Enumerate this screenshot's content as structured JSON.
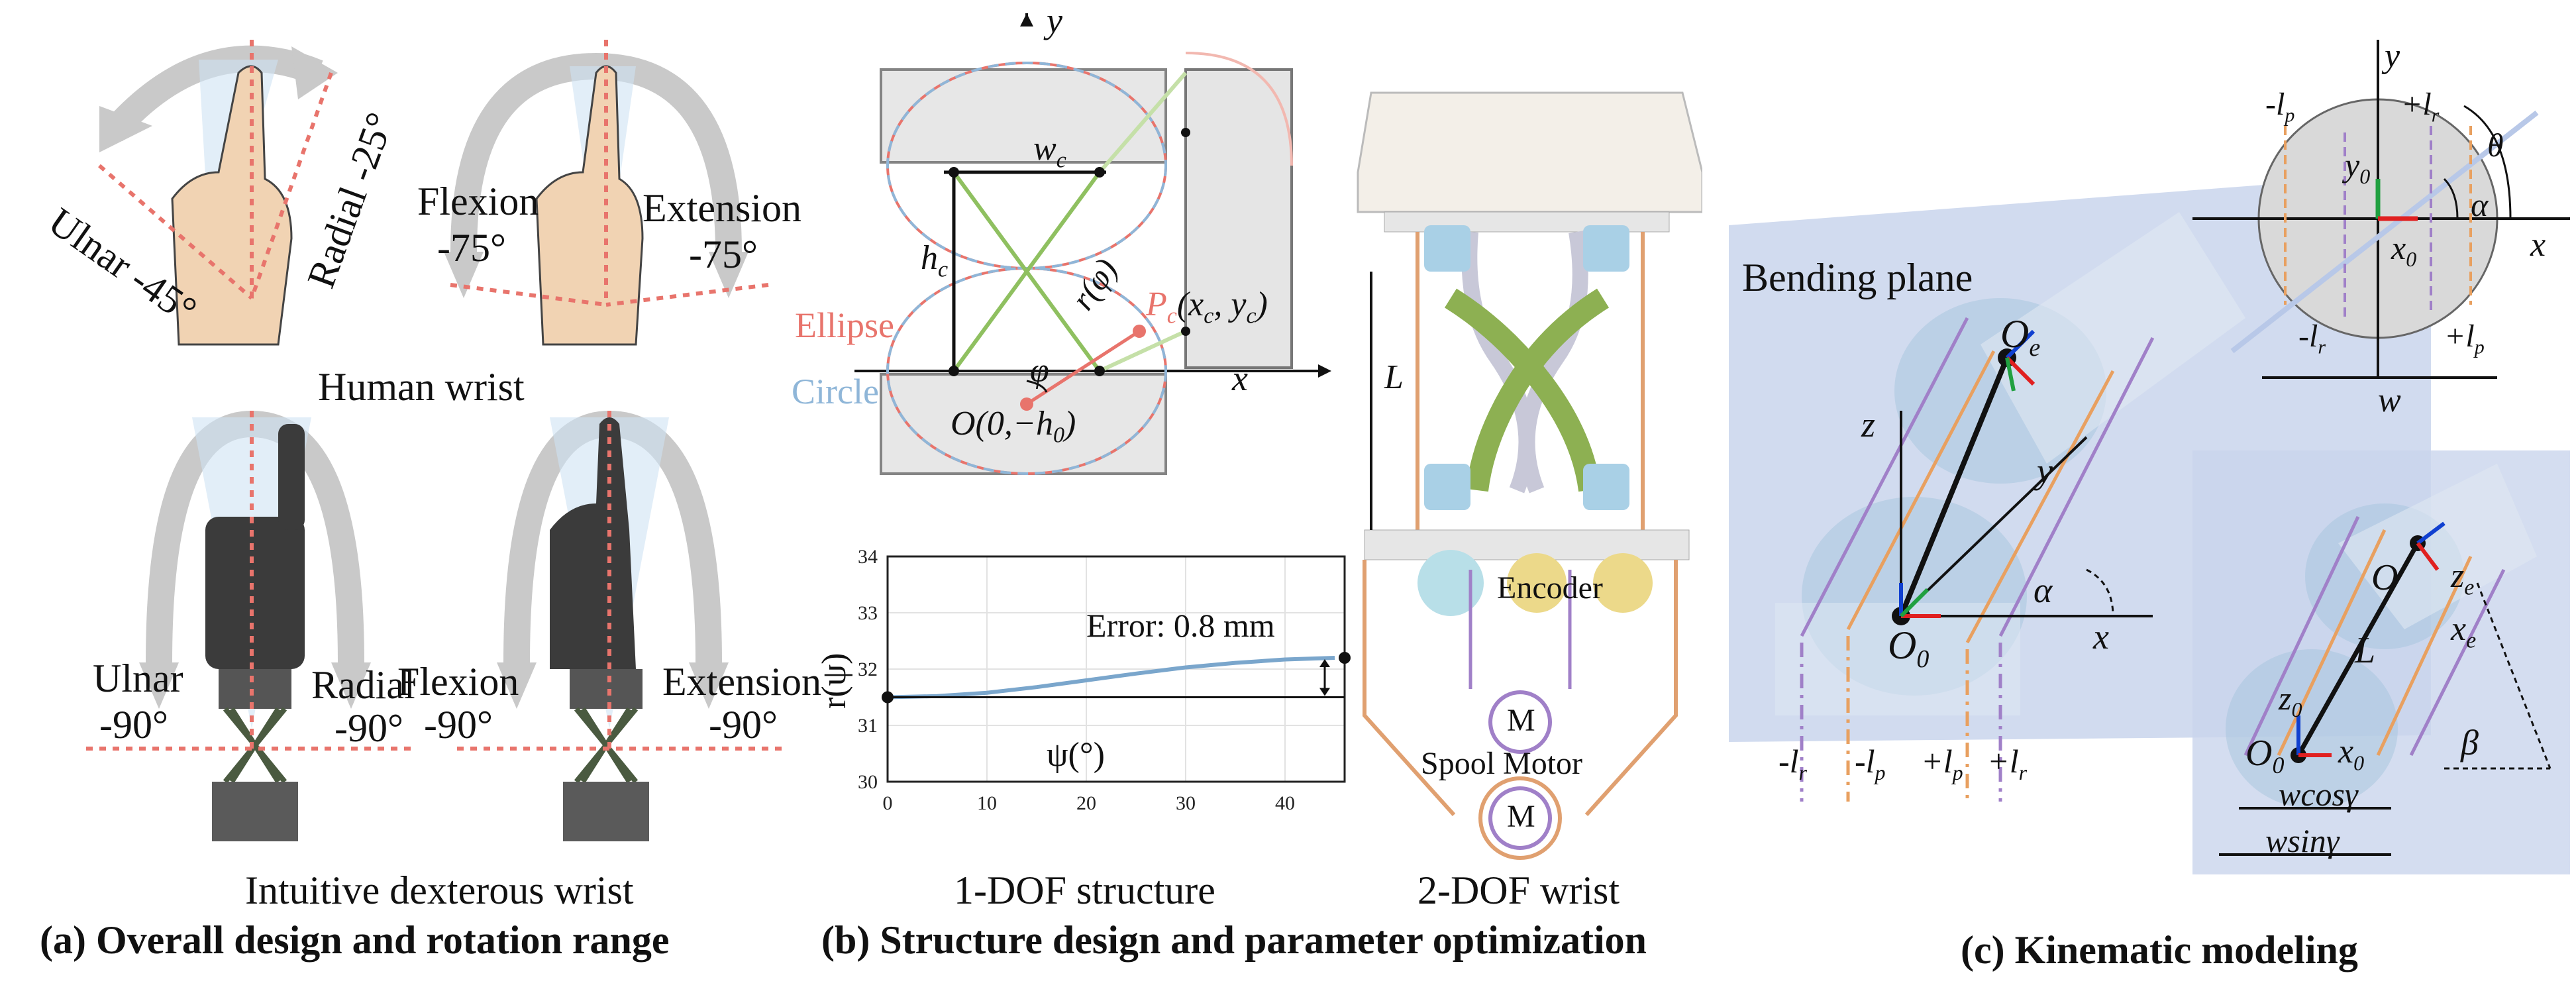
{
  "panel_a": {
    "title": "(a) Overall design and rotation range",
    "human_wrist_label": "Human wrist",
    "robot_wrist_label": "Intuitive dexterous wrist",
    "human_left": {
      "ulnar": "Ulnar -45°",
      "radial": "Radial -25°"
    },
    "human_right": {
      "flexion": "Flexion",
      "flexion_val": "-75°",
      "extension": "Extension",
      "extension_val": "-75°"
    },
    "robot_left": {
      "ulnar": "Ulnar",
      "ulnar_val": "-90°",
      "radial": "Radial",
      "radial_val": "-90°"
    },
    "robot_right": {
      "flexion": "Flexion",
      "flexion_val": "-90°",
      "extension": "Extension",
      "extension_val": "-90°"
    }
  },
  "panel_b": {
    "title": "(b) Structure design and parameter optimization",
    "one_dof_label": "1-DOF structure",
    "two_dof_label": "2-DOF wrist",
    "diagram": {
      "y_axis": "y",
      "x_axis": "x",
      "wc": "w",
      "wc_sub": "c",
      "hc": "h",
      "hc_sub": "c",
      "ellipse": "Ellipse",
      "circle": "Circle",
      "phi": "φ",
      "r_phi": "r(φ)",
      "pc": "P",
      "pc_sub": "c",
      "pc_coords": "(x",
      "pc_coords2": ", y",
      "pc_coords3": ")",
      "origin": "O(0,−h",
      "origin_end": ")"
    },
    "wrist": {
      "L": "L",
      "encoder": "Encoder",
      "spool_motor": "Spool Motor",
      "M1": "M",
      "M2": "M"
    },
    "chart_data": {
      "type": "line",
      "title": "",
      "xlabel": "ψ(°)",
      "ylabel": "r(ψ)",
      "xlim": [
        0,
        46
      ],
      "ylim": [
        30,
        34
      ],
      "x_ticks": [
        "0",
        "10",
        "20",
        "30",
        "40"
      ],
      "y_ticks": [
        "30",
        "31",
        "32",
        "33",
        "34"
      ],
      "annotation": "Error: 0.8 mm",
      "series": [
        {
          "x": [
            0,
            5,
            10,
            15,
            20,
            25,
            30,
            35,
            40,
            45
          ],
          "y": [
            31.5,
            31.52,
            31.58,
            31.68,
            31.8,
            31.92,
            32.03,
            32.11,
            32.17,
            32.2
          ]
        }
      ]
    }
  },
  "panel_c": {
    "title": "(c) Kinematic modeling",
    "bending_plane": "Bending plane",
    "top": {
      "y": "y",
      "x": "x",
      "lp_neg": "-l",
      "lr_pos": "+l",
      "theta": "θ",
      "alpha": "α",
      "y0": "y",
      "x0": "x",
      "lr_neg": "-l",
      "lp_pos": "+l",
      "w": "w"
    },
    "left": {
      "z": "z",
      "x": "x",
      "y": "y",
      "Oe": "O",
      "O0": "O",
      "alpha": "α",
      "lr_neg": "-l",
      "lp_neg": "-l",
      "lp_pos": "+l",
      "lr_pos": "+l"
    },
    "right": {
      "O": "O",
      "ze": "z",
      "xe": "x",
      "L": "L",
      "z0": "z",
      "O0": "O",
      "x0": "x",
      "beta": "β",
      "wcos": "wcosγ",
      "wsin": "wsinγ"
    }
  },
  "colors": {
    "red_dotted": "#e8746c",
    "gray_arrow": "#c9c9c9",
    "green": "#8fc060",
    "orange": "#e8a060",
    "purple": "#a080c8",
    "blue_plane": "#c9d5ec"
  }
}
